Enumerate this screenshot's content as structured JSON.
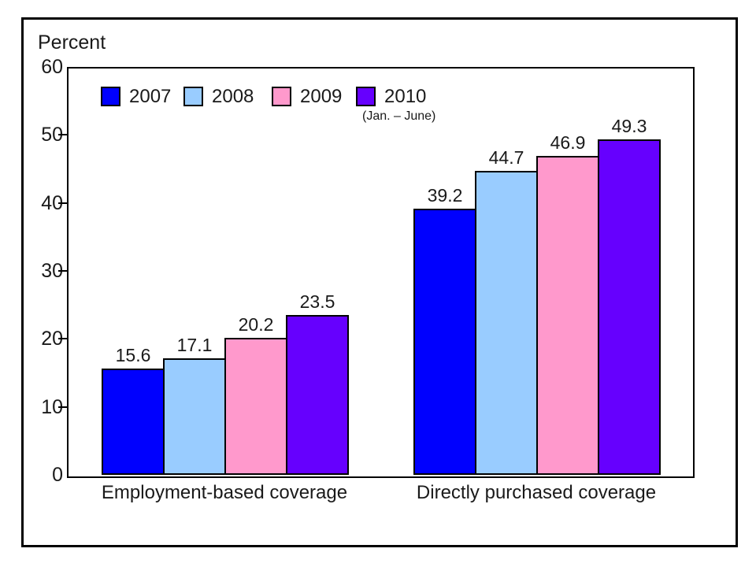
{
  "figure": {
    "y_axis_title": "Percent",
    "background_color": "#ffffff",
    "border_color": "#000000"
  },
  "legend": {
    "items": [
      {
        "label": "2007",
        "sublabel": "",
        "color": "#0000fe"
      },
      {
        "label": "2008",
        "sublabel": "",
        "color": "#99ccff"
      },
      {
        "label": "2009",
        "sublabel": "",
        "color": "#ff99cc"
      },
      {
        "label": "2010",
        "sublabel": "(Jan. – June)",
        "color": "#6600fe"
      }
    ]
  },
  "chart_data": {
    "type": "bar",
    "title": "",
    "xlabel": "",
    "ylabel": "Percent",
    "ylim": [
      0,
      60
    ],
    "yticks": [
      0,
      10,
      20,
      30,
      40,
      50,
      60
    ],
    "grid": false,
    "legend_position": "top-left-inside",
    "bar_value_labels": true,
    "categories": [
      "Employment-based coverage",
      "Directly purchased coverage"
    ],
    "series": [
      {
        "name": "2007",
        "color": "#0000fe",
        "values": [
          15.6,
          39.2
        ]
      },
      {
        "name": "2008",
        "color": "#99ccff",
        "values": [
          17.1,
          44.7
        ]
      },
      {
        "name": "2009",
        "color": "#ff99cc",
        "values": [
          20.2,
          46.9
        ]
      },
      {
        "name": "2010 (Jan. – June)",
        "color": "#6600fe",
        "values": [
          23.5,
          49.3
        ]
      }
    ]
  }
}
